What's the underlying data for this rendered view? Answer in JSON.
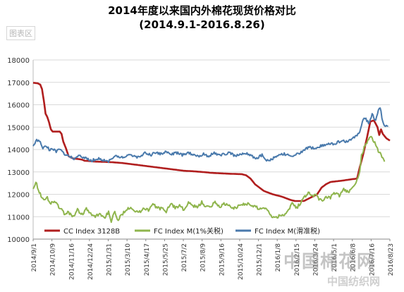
{
  "chart_data": {
    "type": "line",
    "title": "2014年度以来国内外棉花现货价格对比",
    "subtitle": "(2014.9.1-2016.8.26)",
    "ylim": [
      10000,
      18000
    ],
    "yticks": [
      10000,
      11000,
      12000,
      13000,
      14000,
      15000,
      16000,
      17000,
      18000
    ],
    "xticks": [
      "2014/9/1",
      "2014/10/9",
      "2014/11/16",
      "2014/12/24",
      "2015/1/31",
      "2015/3/10",
      "2015/4/17",
      "2015/5/25",
      "2015/7/2",
      "2015/8/9",
      "2015/9/16",
      "2015/10/24",
      "2015/12/1",
      "2016/1/8",
      "2016/2/15",
      "2016/3/24",
      "2016/5/1",
      "2016/6/8",
      "2016/7/16",
      "2016/8/23"
    ],
    "grid": "horizontal",
    "legend": "bottom",
    "series": [
      {
        "name": "CC Index 3128B",
        "color": "#b01e1e",
        "noise": 0,
        "points": [
          [
            0,
            16980
          ],
          [
            5,
            16960
          ],
          [
            8,
            16900
          ],
          [
            10,
            16700
          ],
          [
            12,
            16200
          ],
          [
            14,
            15600
          ],
          [
            16,
            15450
          ],
          [
            18,
            15200
          ],
          [
            20,
            14900
          ],
          [
            22,
            14800
          ],
          [
            26,
            14800
          ],
          [
            30,
            14800
          ],
          [
            32,
            14700
          ],
          [
            34,
            14350
          ],
          [
            37,
            14050
          ],
          [
            40,
            13700
          ],
          [
            45,
            13600
          ],
          [
            50,
            13580
          ],
          [
            55,
            13550
          ],
          [
            58,
            13500
          ],
          [
            65,
            13480
          ],
          [
            70,
            13460
          ],
          [
            80,
            13450
          ],
          [
            90,
            13430
          ],
          [
            100,
            13400
          ],
          [
            110,
            13350
          ],
          [
            120,
            13300
          ],
          [
            130,
            13250
          ],
          [
            140,
            13200
          ],
          [
            150,
            13150
          ],
          [
            160,
            13100
          ],
          [
            170,
            13050
          ],
          [
            180,
            13030
          ],
          [
            190,
            13000
          ],
          [
            196,
            12980
          ],
          [
            200,
            12960
          ],
          [
            220,
            12920
          ],
          [
            235,
            12900
          ],
          [
            240,
            12850
          ],
          [
            245,
            12700
          ],
          [
            250,
            12450
          ],
          [
            260,
            12150
          ],
          [
            270,
            12000
          ],
          [
            280,
            11900
          ],
          [
            290,
            11750
          ],
          [
            295,
            11700
          ],
          [
            305,
            11700
          ],
          [
            310,
            11800
          ],
          [
            315,
            11900
          ],
          [
            320,
            12000
          ],
          [
            325,
            12300
          ],
          [
            330,
            12450
          ],
          [
            335,
            12550
          ],
          [
            350,
            12620
          ],
          [
            360,
            12680
          ],
          [
            365,
            12700
          ],
          [
            368,
            13200
          ],
          [
            372,
            13800
          ],
          [
            376,
            14500
          ],
          [
            380,
            15250
          ],
          [
            384,
            15300
          ],
          [
            388,
            15000
          ],
          [
            390,
            14650
          ],
          [
            392,
            14900
          ],
          [
            394,
            14700
          ],
          [
            398,
            14500
          ],
          [
            402,
            14400
          ]
        ]
      },
      {
        "name": "FC Index M(1%关税)",
        "color": "#8fb54d",
        "noise": 70,
        "points": [
          [
            0,
            12300
          ],
          [
            3,
            12550
          ],
          [
            6,
            12200
          ],
          [
            9,
            11950
          ],
          [
            12,
            11700
          ],
          [
            16,
            11850
          ],
          [
            20,
            11600
          ],
          [
            24,
            11700
          ],
          [
            28,
            11500
          ],
          [
            32,
            11300
          ],
          [
            36,
            11100
          ],
          [
            40,
            11200
          ],
          [
            45,
            11000
          ],
          [
            50,
            11300
          ],
          [
            55,
            11100
          ],
          [
            60,
            11350
          ],
          [
            65,
            11100
          ],
          [
            70,
            11000
          ],
          [
            75,
            11150
          ],
          [
            80,
            10950
          ],
          [
            85,
            11200
          ],
          [
            88,
            10700
          ],
          [
            92,
            11300
          ],
          [
            95,
            10800
          ],
          [
            100,
            11100
          ],
          [
            104,
            11300
          ],
          [
            110,
            11450
          ],
          [
            115,
            11250
          ],
          [
            120,
            11200
          ],
          [
            125,
            11400
          ],
          [
            130,
            11300
          ],
          [
            135,
            11550
          ],
          [
            140,
            11400
          ],
          [
            145,
            11350
          ],
          [
            150,
            11250
          ],
          [
            155,
            11600
          ],
          [
            160,
            11400
          ],
          [
            165,
            11500
          ],
          [
            170,
            11300
          ],
          [
            175,
            11600
          ],
          [
            180,
            11500
          ],
          [
            185,
            11400
          ],
          [
            190,
            11650
          ],
          [
            195,
            11450
          ],
          [
            200,
            11400
          ],
          [
            205,
            11700
          ],
          [
            210,
            11400
          ],
          [
            215,
            11600
          ],
          [
            220,
            11500
          ],
          [
            225,
            11350
          ],
          [
            230,
            11450
          ],
          [
            235,
            11550
          ],
          [
            240,
            11600
          ],
          [
            245,
            11500
          ],
          [
            250,
            11450
          ],
          [
            255,
            11350
          ],
          [
            260,
            11400
          ],
          [
            265,
            11300
          ],
          [
            268,
            11050
          ],
          [
            272,
            10950
          ],
          [
            278,
            11050
          ],
          [
            285,
            11150
          ],
          [
            292,
            11600
          ],
          [
            297,
            11400
          ],
          [
            302,
            11650
          ],
          [
            306,
            11900
          ],
          [
            310,
            12100
          ],
          [
            314,
            11900
          ],
          [
            318,
            12000
          ],
          [
            322,
            11800
          ],
          [
            326,
            11700
          ],
          [
            330,
            11900
          ],
          [
            335,
            11850
          ],
          [
            340,
            12050
          ],
          [
            345,
            11950
          ],
          [
            350,
            12200
          ],
          [
            355,
            12100
          ],
          [
            360,
            12350
          ],
          [
            365,
            12600
          ],
          [
            368,
            13000
          ],
          [
            370,
            13700
          ],
          [
            373,
            14100
          ],
          [
            377,
            14400
          ],
          [
            381,
            14550
          ],
          [
            385,
            14300
          ],
          [
            388,
            14000
          ],
          [
            392,
            13750
          ],
          [
            396,
            13500
          ]
        ]
      },
      {
        "name": "FC Index M(滑准税)",
        "color": "#4a7aac",
        "noise": 60,
        "points": [
          [
            0,
            14200
          ],
          [
            4,
            14400
          ],
          [
            8,
            14350
          ],
          [
            11,
            14050
          ],
          [
            14,
            14200
          ],
          [
            18,
            14000
          ],
          [
            22,
            14050
          ],
          [
            26,
            13900
          ],
          [
            30,
            14000
          ],
          [
            34,
            13850
          ],
          [
            40,
            13700
          ],
          [
            46,
            13600
          ],
          [
            52,
            13700
          ],
          [
            58,
            13650
          ],
          [
            62,
            13550
          ],
          [
            66,
            13500
          ],
          [
            72,
            13600
          ],
          [
            78,
            13550
          ],
          [
            84,
            13450
          ],
          [
            90,
            13650
          ],
          [
            96,
            13700
          ],
          [
            102,
            13600
          ],
          [
            108,
            13800
          ],
          [
            114,
            13700
          ],
          [
            120,
            13650
          ],
          [
            126,
            13850
          ],
          [
            132,
            13750
          ],
          [
            138,
            13850
          ],
          [
            144,
            13800
          ],
          [
            150,
            13900
          ],
          [
            156,
            13800
          ],
          [
            162,
            13850
          ],
          [
            168,
            13750
          ],
          [
            174,
            13850
          ],
          [
            180,
            13800
          ],
          [
            186,
            13700
          ],
          [
            192,
            13800
          ],
          [
            198,
            13700
          ],
          [
            204,
            13850
          ],
          [
            210,
            13750
          ],
          [
            216,
            13800
          ],
          [
            222,
            13850
          ],
          [
            228,
            13700
          ],
          [
            234,
            13800
          ],
          [
            240,
            13850
          ],
          [
            246,
            13700
          ],
          [
            252,
            13600
          ],
          [
            258,
            13750
          ],
          [
            264,
            13500
          ],
          [
            270,
            13600
          ],
          [
            276,
            13700
          ],
          [
            282,
            13800
          ],
          [
            288,
            13750
          ],
          [
            294,
            13700
          ],
          [
            300,
            13850
          ],
          [
            306,
            14000
          ],
          [
            312,
            14100
          ],
          [
            318,
            14050
          ],
          [
            324,
            14150
          ],
          [
            330,
            14200
          ],
          [
            336,
            14250
          ],
          [
            342,
            14300
          ],
          [
            348,
            14400
          ],
          [
            354,
            14350
          ],
          [
            360,
            14500
          ],
          [
            364,
            14600
          ],
          [
            368,
            14800
          ],
          [
            371,
            15250
          ],
          [
            374,
            15400
          ],
          [
            378,
            15200
          ],
          [
            382,
            15550
          ],
          [
            386,
            15300
          ],
          [
            389,
            15700
          ],
          [
            391,
            15900
          ],
          [
            394,
            15200
          ],
          [
            397,
            15050
          ],
          [
            400,
            15000
          ]
        ]
      }
    ]
  }
}
